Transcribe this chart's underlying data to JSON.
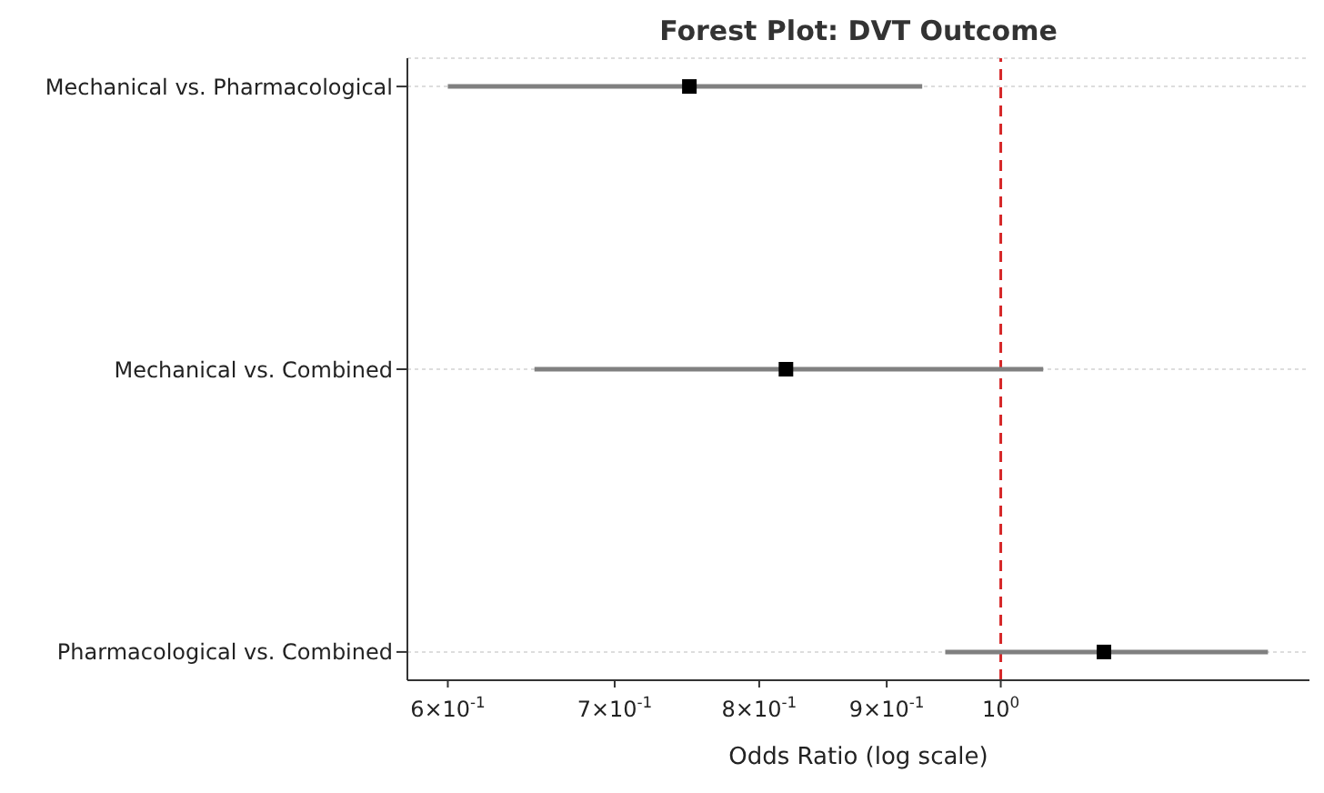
{
  "chart_data": {
    "type": "scatter",
    "orientation": "horizontal",
    "title": "Forest Plot: DVT Outcome",
    "xlabel": "Odds Ratio (log scale)",
    "categories": [
      "Mechanical vs. Pharmacological",
      "Mechanical vs. Combined",
      "Pharmacological vs. Combined"
    ],
    "series": [
      {
        "color": "#000000",
        "values": [
          0.75,
          0.82,
          1.1
        ],
        "errors": [
          [
            0.6,
            0.93
          ],
          [
            0.65,
            1.04
          ],
          [
            0.95,
            1.28
          ]
        ]
      }
    ],
    "xlim": [
      0.578,
      1.33
    ],
    "log": "x",
    "xticks": [
      {
        "value": 0.6,
        "label": "6×10$^{-1}$"
      },
      {
        "value": 0.7,
        "label": "7×10$^{-1}$"
      },
      {
        "value": 0.8,
        "label": "8×10$^{-1}$"
      },
      {
        "value": 0.9,
        "label": "9×10$^{-1}$"
      },
      {
        "value": 1,
        "label": "10$^{0}$"
      }
    ],
    "ref_lines": [
      {
        "axis": "x",
        "value": 1,
        "color": "#d62728",
        "line_style": "dashed"
      }
    ],
    "grid": "y",
    "marker": "square",
    "legend": false
  }
}
